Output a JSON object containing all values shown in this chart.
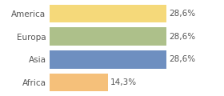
{
  "categories": [
    "America",
    "Europa",
    "Asia",
    "Africa"
  ],
  "values": [
    28.6,
    28.6,
    28.6,
    14.3
  ],
  "bar_colors": [
    "#f5d97a",
    "#adc08a",
    "#6e8fc0",
    "#f5c07a"
  ],
  "labels": [
    "28,6%",
    "28,6%",
    "28,6%",
    "14,3%"
  ],
  "xlim": [
    0,
    36
  ],
  "background_color": "#ffffff",
  "label_fontsize": 7.5,
  "tick_fontsize": 7.5,
  "bar_height": 0.78
}
